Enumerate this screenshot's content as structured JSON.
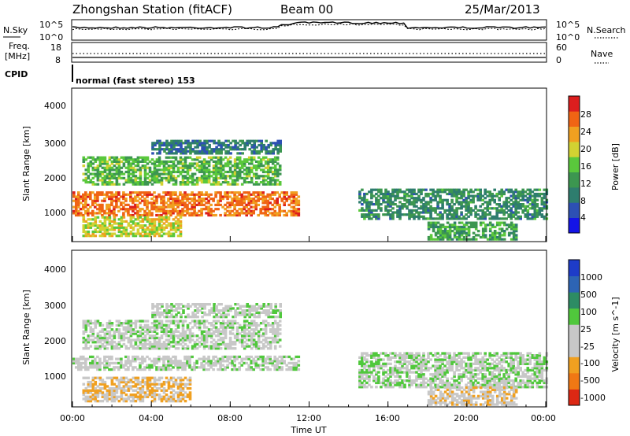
{
  "header": {
    "station": "Zhongshan Station (fitACF)",
    "beam": "Beam 00",
    "date": "25/Mar/2013"
  },
  "sky_panel": {
    "left_label": "N.Sky",
    "right_label": "N.Search",
    "left_ticks": [
      "10^5",
      "10^0"
    ],
    "right_ticks": [
      "10^5",
      "10^0"
    ]
  },
  "freq_panel": {
    "left_label": "Freq.",
    "left_units": "[MHz]",
    "right_label": "Nave",
    "left_ticks": [
      "18",
      "8"
    ],
    "right_ticks": [
      "60",
      "0"
    ]
  },
  "cpid": {
    "label": "CPID",
    "text": "normal (fast stereo) 153"
  },
  "power_panel": {
    "ylabel": "Slant Range [km]",
    "yticks": [
      "4000",
      "3000",
      "2000",
      "1000"
    ],
    "colorbar_label": "Power [dB]",
    "colorbar_ticks": [
      "28",
      "24",
      "20",
      "16",
      "12",
      "8",
      "4"
    ],
    "colors": [
      "#1414e6",
      "#2d50b4",
      "#2e7d6e",
      "#3c9650",
      "#5ac83c",
      "#d2d232",
      "#f0a020",
      "#f06414",
      "#dc1e1e"
    ]
  },
  "velocity_panel": {
    "ylabel": "Slant Range [km]",
    "yticks": [
      "4000",
      "3000",
      "2000",
      "1000"
    ],
    "colorbar_label": "Velocity [m s^-1]",
    "colorbar_ticks": [
      "1000",
      "500",
      "100",
      "25",
      "-25",
      "-100",
      "-500",
      "-1000"
    ],
    "colors": [
      "#1e3cc8",
      "#2d64b4",
      "#2d8c64",
      "#50c83c",
      "#c8c8c8",
      "#c8c8c8",
      "#f0a020",
      "#f07814",
      "#dc2814"
    ]
  },
  "xaxis": {
    "label": "Time UT",
    "ticks": [
      "00:00",
      "04:00",
      "08:00",
      "12:00",
      "16:00",
      "20:00",
      "00:00"
    ]
  },
  "chart_data": [
    {
      "type": "heatmap",
      "title": "Zhongshan Station (fitACF) Beam 00 25/Mar/2013",
      "xlabel": "Time UT",
      "ylabel": "Slant Range [km]",
      "x_range_hours": [
        0,
        24
      ],
      "ylim": [
        180,
        4600
      ],
      "colorbar": "Power [dB]",
      "color_range": [
        0,
        30
      ],
      "echo_regions": [
        {
          "t_start": 0.0,
          "t_end": 11.5,
          "range_start": 900,
          "range_end": 1600,
          "value": 24
        },
        {
          "t_start": 0.5,
          "t_end": 10.5,
          "range_start": 1800,
          "range_end": 2600,
          "value": 14
        },
        {
          "t_start": 4.0,
          "t_end": 10.5,
          "range_start": 2700,
          "range_end": 3100,
          "value": 8
        },
        {
          "t_start": 0.5,
          "t_end": 5.5,
          "range_start": 300,
          "range_end": 900,
          "value": 18
        },
        {
          "t_start": 14.5,
          "t_end": 24.0,
          "range_start": 800,
          "range_end": 1700,
          "value": 10
        },
        {
          "t_start": 18.0,
          "t_end": 22.5,
          "range_start": 200,
          "range_end": 700,
          "value": 12
        }
      ]
    },
    {
      "type": "heatmap",
      "xlabel": "Time UT",
      "ylabel": "Slant Range [km]",
      "x_range_hours": [
        0,
        24
      ],
      "ylim": [
        180,
        4600
      ],
      "colorbar": "Velocity [m s^-1]",
      "color_range": [
        -1000,
        1000
      ],
      "echo_regions": [
        {
          "t_start": 0.0,
          "t_end": 11.5,
          "range_start": 1200,
          "range_end": 1600,
          "value": 0
        },
        {
          "t_start": 0.5,
          "t_end": 10.5,
          "range_start": 1800,
          "range_end": 2600,
          "value": 0
        },
        {
          "t_start": 4.0,
          "t_end": 10.5,
          "range_start": 2700,
          "range_end": 3100,
          "value": 0
        },
        {
          "t_start": 0.5,
          "t_end": 6.0,
          "range_start": 300,
          "range_end": 1000,
          "value": -300
        },
        {
          "t_start": 14.5,
          "t_end": 24.0,
          "range_start": 700,
          "range_end": 1700,
          "value": 50
        },
        {
          "t_start": 18.0,
          "t_end": 22.5,
          "range_start": 200,
          "range_end": 700,
          "value": -200
        }
      ]
    }
  ]
}
